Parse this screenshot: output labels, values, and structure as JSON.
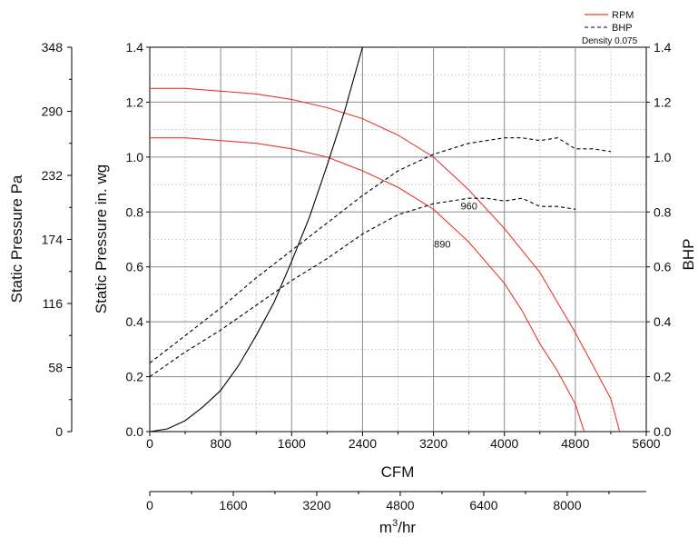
{
  "chart_data": {
    "type": "line",
    "legend": {
      "position": "top-right",
      "items": [
        {
          "label": "RPM",
          "color": "#e8372c",
          "style": "solid"
        },
        {
          "label": "BHP",
          "color": "#000000",
          "style": "dashed"
        }
      ],
      "note": "Density 0.075"
    },
    "xlabel": "CFM",
    "x2label": "m3/hr",
    "ylabel_left_pa": "Static Pressure Pa",
    "ylabel_left_inwg": "Static Pressure in. wg",
    "ylabel_right": "BHP",
    "xlim": [
      0,
      5600
    ],
    "ylim": [
      0,
      1.4
    ],
    "x_ticks": [
      "0",
      "800",
      "1600",
      "2400",
      "3200",
      "4000",
      "4800",
      "5600"
    ],
    "y_ticks": [
      "0.0",
      "0.2",
      "0.4",
      "0.6",
      "0.8",
      "1.0",
      "1.2",
      "1.4"
    ],
    "y_right_ticks": [
      "0.0",
      "0.2",
      "0.4",
      "0.6",
      "0.8",
      "1.0",
      "1.2",
      "1.4"
    ],
    "pa_ticks": [
      "0",
      "58",
      "116",
      "174",
      "232",
      "290",
      "348"
    ],
    "m3hr_ticks": [
      "0",
      "1600",
      "3200",
      "4800",
      "6400",
      "8000"
    ],
    "grid": true,
    "curve_labels": [
      {
        "text": "960",
        "x": 3600,
        "y": 0.81
      },
      {
        "text": "890",
        "x": 3300,
        "y": 0.67
      }
    ],
    "series": [
      {
        "name": "960",
        "kind": "rpm",
        "color": "#e8372c",
        "style": "solid",
        "x": [
          0,
          400,
          800,
          1200,
          1600,
          2000,
          2400,
          2800,
          3200,
          3600,
          4000,
          4400,
          4600,
          4800,
          5000,
          5200,
          5300
        ],
        "y": [
          1.25,
          1.25,
          1.24,
          1.23,
          1.21,
          1.18,
          1.14,
          1.08,
          1.0,
          0.88,
          0.74,
          0.58,
          0.47,
          0.36,
          0.24,
          0.12,
          0.0
        ]
      },
      {
        "name": "890",
        "kind": "rpm",
        "color": "#e8372c",
        "style": "solid",
        "x": [
          0,
          400,
          800,
          1200,
          1600,
          2000,
          2400,
          2800,
          3200,
          3600,
          4000,
          4200,
          4400,
          4600,
          4800,
          4900
        ],
        "y": [
          1.07,
          1.07,
          1.06,
          1.05,
          1.03,
          1.0,
          0.95,
          0.89,
          0.81,
          0.69,
          0.54,
          0.44,
          0.32,
          0.22,
          0.1,
          0.0
        ]
      },
      {
        "name": "960",
        "kind": "bhp",
        "color": "#000000",
        "style": "dashed",
        "x": [
          0,
          400,
          800,
          1200,
          1600,
          2000,
          2400,
          2800,
          3200,
          3600,
          4000,
          4200,
          4400,
          4600,
          4800,
          5000,
          5200
        ],
        "y": [
          0.25,
          0.35,
          0.45,
          0.56,
          0.66,
          0.76,
          0.86,
          0.95,
          1.01,
          1.05,
          1.07,
          1.07,
          1.06,
          1.07,
          1.03,
          1.03,
          1.02
        ]
      },
      {
        "name": "890",
        "kind": "bhp",
        "color": "#000000",
        "style": "dashed",
        "x": [
          0,
          400,
          800,
          1200,
          1600,
          2000,
          2400,
          2800,
          3200,
          3600,
          3800,
          4000,
          4200,
          4400,
          4600,
          4800
        ],
        "y": [
          0.2,
          0.29,
          0.37,
          0.46,
          0.55,
          0.63,
          0.72,
          0.79,
          0.83,
          0.85,
          0.85,
          0.84,
          0.85,
          0.82,
          0.82,
          0.81
        ]
      },
      {
        "name": "system",
        "kind": "system",
        "color": "#000000",
        "style": "solid",
        "x": [
          0,
          200,
          400,
          600,
          800,
          1000,
          1200,
          1400,
          1600,
          1800,
          2000,
          2200,
          2400
        ],
        "y": [
          0.0,
          0.01,
          0.04,
          0.09,
          0.15,
          0.24,
          0.35,
          0.47,
          0.62,
          0.78,
          0.97,
          1.17,
          1.4
        ]
      }
    ]
  }
}
